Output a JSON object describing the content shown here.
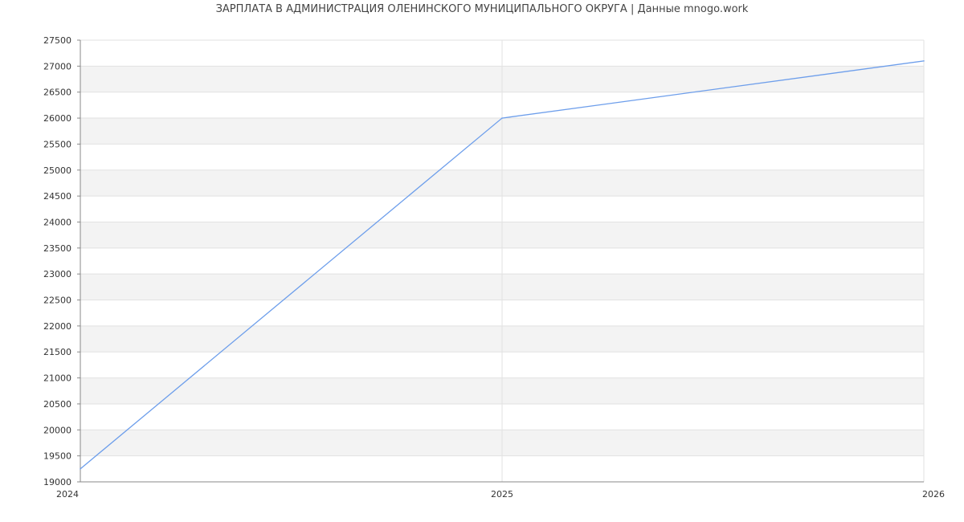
{
  "chart_data": {
    "type": "line",
    "title": "ЗАРПЛАТА В АДМИНИСТРАЦИЯ ОЛЕНИНСКОГО МУНИЦИПАЛЬНОГО ОКРУГА | Данные mnogo.work",
    "xlabel": "",
    "ylabel": "",
    "x": [
      "2024",
      "2025",
      "2026"
    ],
    "series": [
      {
        "values": [
          19250,
          26000,
          27100
        ],
        "color": "#6d9eeb"
      }
    ],
    "ylim": [
      19000,
      27500
    ],
    "ytick_step": 500,
    "grid": true,
    "band_color": "#f3f3f3"
  }
}
